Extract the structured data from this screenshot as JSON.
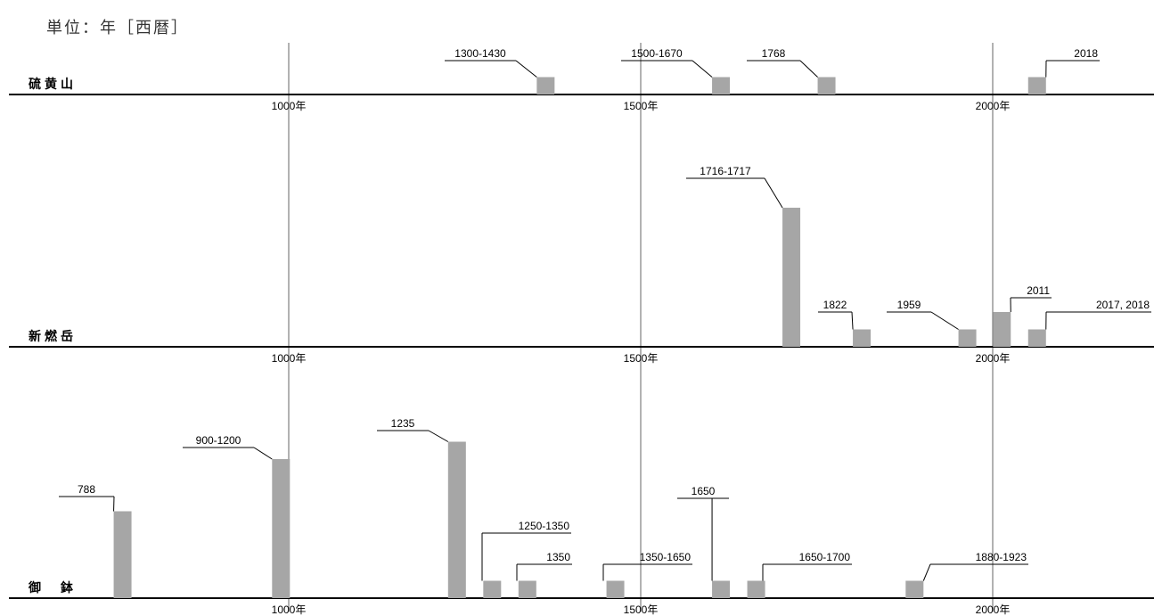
{
  "unit_label": "単位：年［西暦］",
  "colors": {
    "bar": "#a6a6a6",
    "axis": "#000000",
    "gridline": "#666666"
  },
  "chart_data": {
    "type": "bar",
    "xlim": [
      590,
      2225
    ],
    "gridlines": [
      1000,
      1500,
      2000
    ],
    "tick_labels": [
      "1000年",
      "1500年",
      "2000年"
    ],
    "panels": [
      {
        "name": "硫黄山",
        "events": [
          {
            "label": "1300-1430",
            "x": 1365,
            "size": 1
          },
          {
            "label": "1500-1670",
            "x": 1614,
            "size": 1
          },
          {
            "label": "1768",
            "x": 1764,
            "size": 1
          },
          {
            "label": "2018",
            "x": 2063,
            "size": 1
          }
        ]
      },
      {
        "name": "新燃岳",
        "events": [
          {
            "label": "1716-1717",
            "x": 1714,
            "size": 8
          },
          {
            "label": "1822",
            "x": 1814,
            "size": 1
          },
          {
            "label": "1959",
            "x": 1964,
            "size": 1
          },
          {
            "label": "2011",
            "x": 2013,
            "size": 2
          },
          {
            "label": "2017, 2018",
            "x": 2063,
            "size": 1
          }
        ]
      },
      {
        "name": "御　鉢",
        "events": [
          {
            "label": "788",
            "x": 764,
            "size": 5
          },
          {
            "label": "900-1200",
            "x": 989,
            "size": 8
          },
          {
            "label": "1235",
            "x": 1239,
            "size": 9
          },
          {
            "label": "1250-1350",
            "x": 1289,
            "size": 1
          },
          {
            "label": "1350",
            "x": 1339,
            "size": 1
          },
          {
            "label": "1350-1650",
            "x": 1464,
            "size": 1
          },
          {
            "label": "1650",
            "x": 1614,
            "size": 1
          },
          {
            "label": "1650-1700",
            "x": 1664,
            "size": 1
          },
          {
            "label": "1880-1923",
            "x": 1889,
            "size": 1
          }
        ]
      }
    ]
  }
}
